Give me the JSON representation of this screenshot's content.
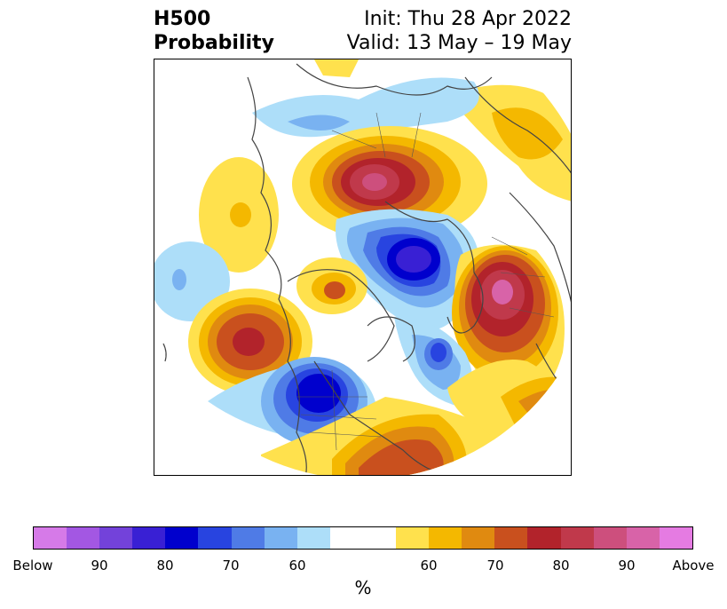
{
  "header": {
    "title_line1": "H500",
    "title_line2": "Probability",
    "init": "Init: Thu 28 Apr 2022",
    "valid": "Valid: 13 May – 19 May"
  },
  "colorbar": {
    "colors": [
      "#d67ae8",
      "#a357e3",
      "#7342da",
      "#3920d4",
      "#0000cd",
      "#2844e0",
      "#4f7be6",
      "#79b2f1",
      "#addef9",
      "#ffffff",
      "#ffffff",
      "#ffe14d",
      "#f4b800",
      "#e08a10",
      "#c9501e",
      "#b2232b",
      "#c0394b",
      "#cd4f7d",
      "#d863a8",
      "#e57be2"
    ],
    "labels": [
      "Below",
      "90",
      "80",
      "70",
      "60",
      "60",
      "70",
      "80",
      "90",
      "Above"
    ],
    "unit": "%"
  },
  "colors": {
    "blue": [
      "#addef9",
      "#79b2f1",
      "#4f7be6",
      "#2844e0",
      "#0000cd",
      "#3920d4",
      "#7342da"
    ],
    "red": [
      "#ffe14d",
      "#f4b800",
      "#e08a10",
      "#c9501e",
      "#b2232b",
      "#c0394b",
      "#cd4f7d",
      "#d863a8"
    ],
    "coast": "#444444"
  }
}
